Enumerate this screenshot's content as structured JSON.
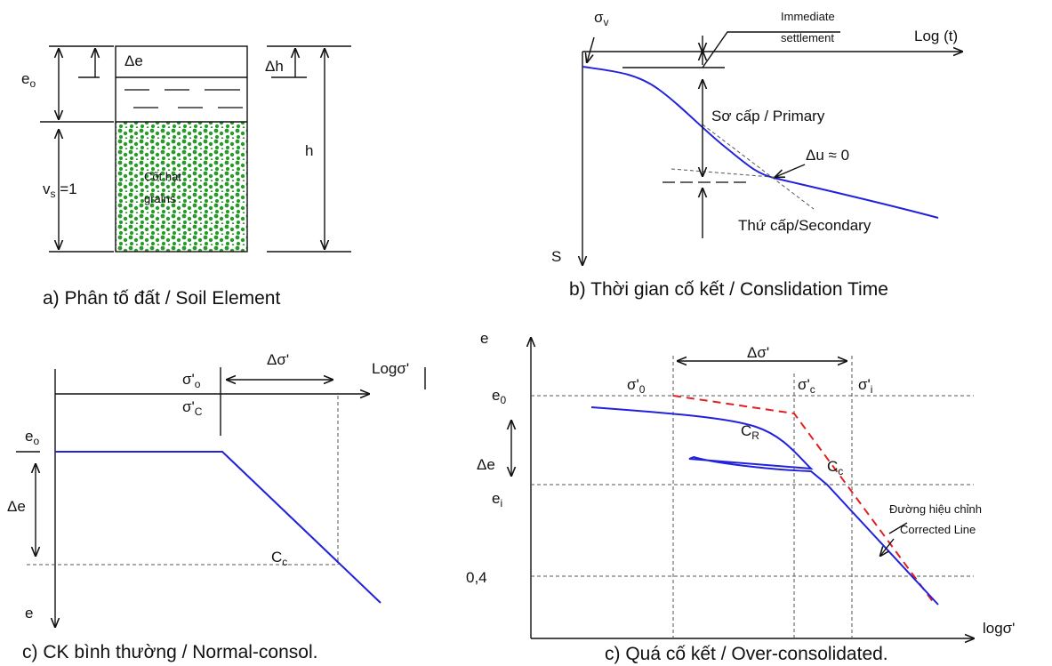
{
  "panel_a": {
    "delta_e": "Δe",
    "e_o": {
      "base": "e",
      "sub": "o"
    },
    "delta_h": "Δh",
    "h": "h",
    "v_s": {
      "base": "v",
      "sub": "s",
      "rest": " =1"
    },
    "grains_1": "Cốt hạt",
    "grains_2": "grains",
    "caption": "a) Phân tố đất / Soil Element"
  },
  "panel_b": {
    "sigma_v": {
      "base": "σ",
      "sub": "v"
    },
    "immediate_1": "Immediate",
    "immediate_2": "settlement",
    "x_axis": "Log (t)",
    "primary": "Sơ cấp / Primary",
    "delta_u": "Δu  ≈  0",
    "secondary": "Thứ cấp/Secondary",
    "y_axis": "S",
    "caption": "b) Thời gian cố kết / Conslidation Time"
  },
  "panel_c": {
    "delta_sigma": "Δσ'",
    "x_axis": "Logσ'",
    "sigma_o": {
      "base": "σ'",
      "sub": "o"
    },
    "sigma_c": {
      "base": "σ'",
      "sub": "C"
    },
    "e_o": {
      "base": "e",
      "sub": "o"
    },
    "delta_e": "Δe",
    "c_c": {
      "base": "C",
      "sub": "c"
    },
    "e": "e",
    "caption": "c) CK bình thường / Normal-consol."
  },
  "panel_d": {
    "y_axis": "e",
    "delta_sigma": "Δσ'",
    "sigma_0": {
      "base": "σ'",
      "sub": "0"
    },
    "sigma_c": {
      "base": "σ'",
      "sub": "c"
    },
    "sigma_i": {
      "base": "σ'",
      "sub": "i"
    },
    "e_0": {
      "base": "e",
      "sub": "0"
    },
    "delta_e": "Δe",
    "c_r": {
      "base": "C",
      "sub": "R"
    },
    "c_c": {
      "base": "C",
      "sub": "c"
    },
    "e_i": {
      "base": "e",
      "sub": "i"
    },
    "corrected_1": "Đường hiệu chỉnh",
    "corrected_2": "Corrected Line",
    "tick_04": "0,4",
    "x_axis": "logσ'",
    "caption": "c) Quá cố kết / Over-consolidated."
  }
}
